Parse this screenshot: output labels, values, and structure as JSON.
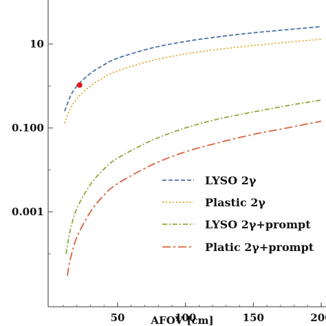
{
  "chart_data": {
    "type": "line",
    "xlabel": "AFOV [cm]",
    "ylabel": "",
    "title": "",
    "y_scale": "log",
    "xlim": [
      10,
      200
    ],
    "ylim": [
      3e-05,
      50
    ],
    "x_ticks": [
      {
        "value": 50,
        "label": "50"
      },
      {
        "value": 100,
        "label": "100"
      },
      {
        "value": 150,
        "label": "150"
      },
      {
        "value": 200,
        "label": "200"
      }
    ],
    "y_ticks": [
      {
        "value": 10,
        "label": "10"
      },
      {
        "value": 0.1,
        "label": "0.100"
      },
      {
        "value": 0.001,
        "label": "0.001"
      }
    ],
    "grid": false,
    "legend_position": "lower-right",
    "series": [
      {
        "name": "LYSO 2γ",
        "color": "#4a72a6",
        "dash": "dashed",
        "x": [
          11,
          15,
          20,
          30,
          40,
          50,
          75,
          100,
          125,
          150,
          175,
          200
        ],
        "y": [
          0.25,
          0.55,
          1.0,
          2.0,
          3.2,
          4.6,
          8.0,
          11.5,
          15.0,
          18.5,
          22.0,
          26.0
        ]
      },
      {
        "name": "Plastic 2γ",
        "color": "#e5a01e",
        "dash": "dotted",
        "x": [
          11,
          15,
          20,
          30,
          40,
          50,
          75,
          100,
          125,
          150,
          175,
          200
        ],
        "y": [
          0.13,
          0.28,
          0.5,
          1.0,
          1.6,
          2.3,
          4.0,
          5.8,
          7.5,
          9.2,
          11.0,
          13.0
        ]
      },
      {
        "name": "LYSO 2γ+prompt",
        "color": "#8aa838",
        "dash": "dashdot",
        "x": [
          12,
          15,
          20,
          30,
          40,
          50,
          75,
          100,
          125,
          150,
          175,
          200
        ],
        "y": [
          0.0001,
          0.00035,
          0.0012,
          0.0045,
          0.0105,
          0.019,
          0.05,
          0.1,
          0.165,
          0.24,
          0.34,
          0.46
        ]
      },
      {
        "name": "Platic 2γ+prompt",
        "color": "#d9603b",
        "dash": "longdashdot",
        "x": [
          13,
          15,
          20,
          30,
          40,
          50,
          75,
          100,
          125,
          150,
          175,
          200
        ],
        "y": [
          3e-05,
          7e-05,
          0.00025,
          0.001,
          0.0025,
          0.0047,
          0.013,
          0.027,
          0.045,
          0.07,
          0.1,
          0.145
        ]
      }
    ],
    "annotations": [
      {
        "type": "point",
        "x": 22,
        "y": 1.05,
        "color": "#e8141c"
      }
    ]
  }
}
